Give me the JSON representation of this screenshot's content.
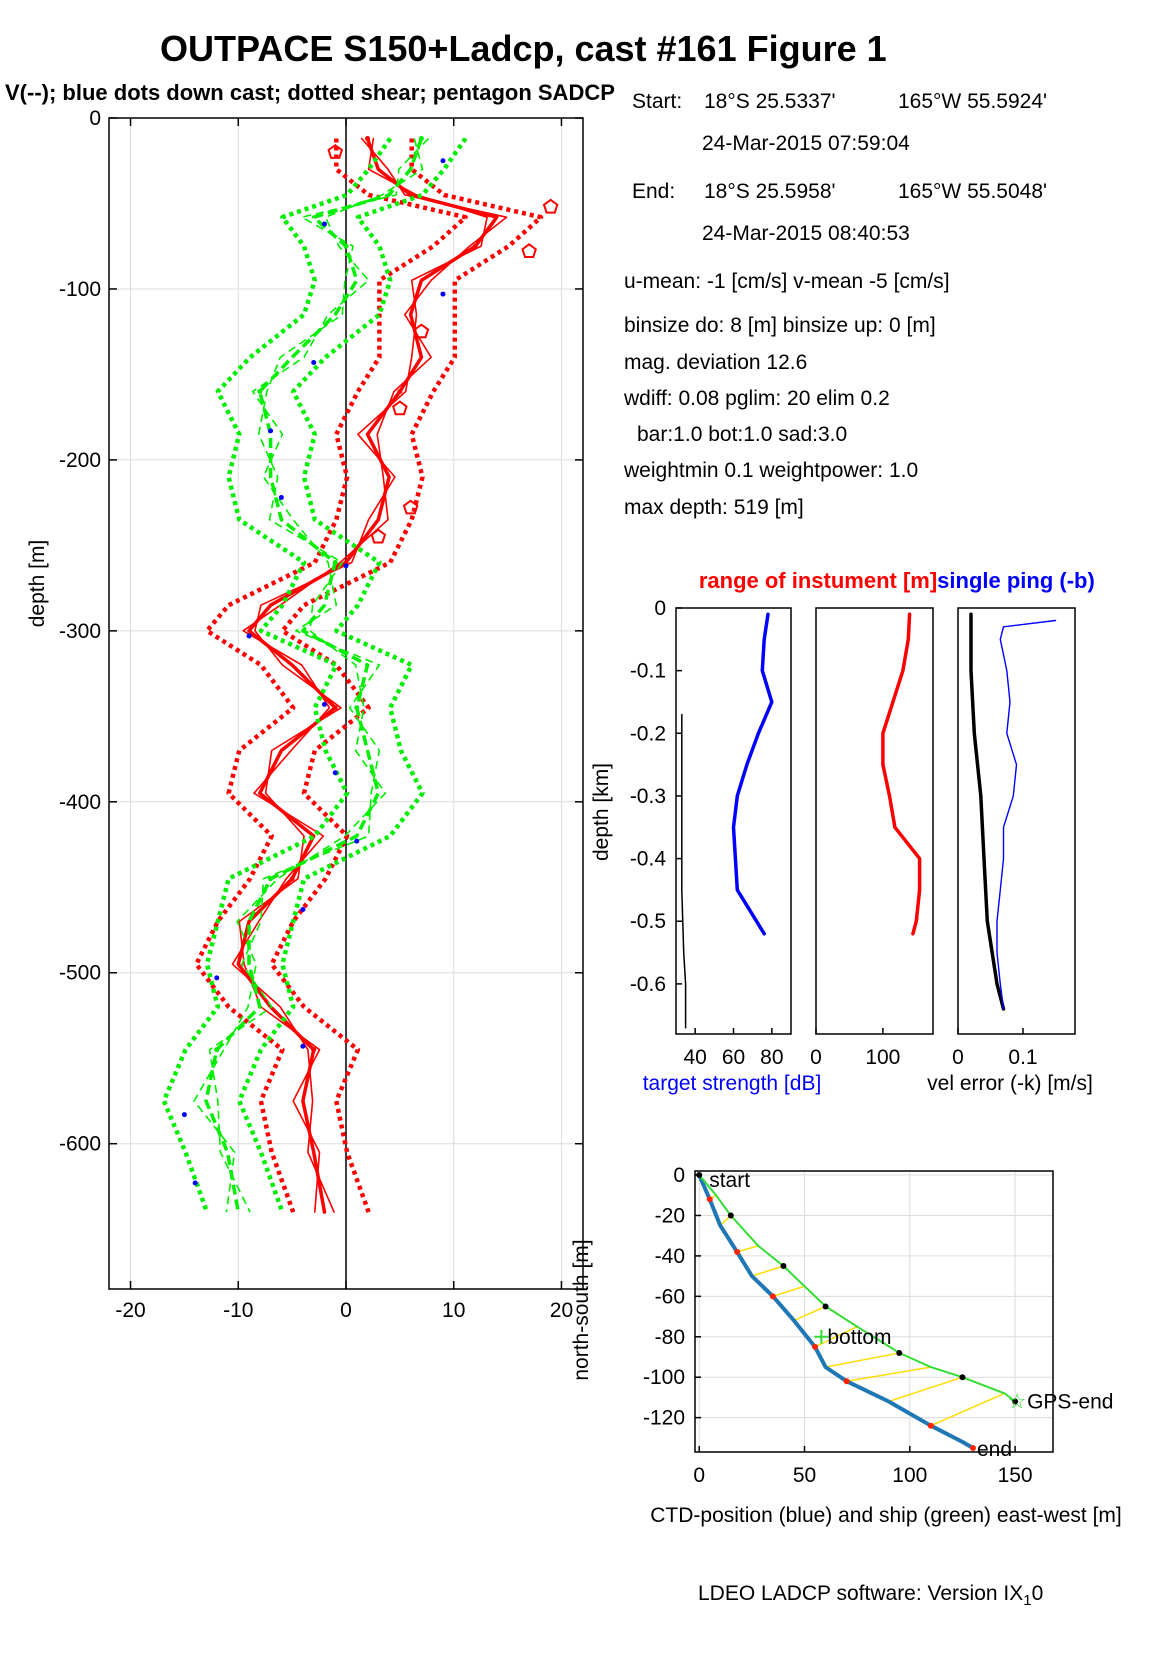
{
  "figure": {
    "title": "OUTPACE S150+Ladcp, cast #161  Figure 1",
    "subtitle": "V(--); blue dots down cast; dotted shear; pentagon SADCP",
    "footer": "LDEO LADCP software: Version IX",
    "footer_sub": "1",
    "footer_tail": "0"
  },
  "info": {
    "start_label": "Start:",
    "start_lat": "18°S 25.5337'",
    "start_lon": "165°W 55.5924'",
    "start_time": "24-Mar-2015 07:59:04",
    "end_label": "End:",
    "end_lat": "18°S 25.5958'",
    "end_lon": "165°W 55.5048'",
    "end_time": "24-Mar-2015 08:40:53",
    "means": "u-mean:  -1 [cm/s]    v-mean  -5 [cm/s]",
    "binsize": "binsize do: 8 [m]  binsize up:  0 [m]",
    "magdev": "mag. deviation 12.6",
    "wdiff": "wdiff: 0.08  pglim: 20  elim 0.2",
    "bar": "bar:1.0 bot:1.0 sad:3.0",
    "weight": "weightmin 0.1  weightpower: 1.0",
    "maxdepth": "max depth: 519 [m]"
  },
  "chart_data": [
    {
      "type": "line",
      "id": "velocity-profile",
      "title": "V(--); blue dots down cast; dotted shear; pentagon SADCP",
      "ylabel": "depth [m]",
      "xlabel": "",
      "xlim": [
        -22,
        22
      ],
      "ylim": [
        -685,
        0
      ],
      "xticks": [
        "-20",
        "-10",
        "0",
        "10",
        "20"
      ],
      "yticks": [
        "0",
        "-100",
        "-200",
        "-300",
        "-400",
        "-500",
        "-600"
      ],
      "grid": true,
      "series": [
        {
          "color": "#ff0000",
          "depth": [
            -12,
            -30,
            -45,
            -58,
            -75,
            -95,
            -115,
            -140,
            -160,
            -185,
            -210,
            -235,
            -260,
            -285,
            -300,
            -320,
            -345,
            -370,
            -395,
            -420,
            -445,
            -470,
            -495,
            -520,
            -545,
            -575,
            -605,
            -640
          ],
          "values": [
            2,
            3,
            6,
            14,
            12,
            7,
            6,
            7,
            5,
            2,
            4,
            3,
            0,
            -7,
            -9,
            -5,
            -1,
            -6,
            -8,
            -3,
            -5,
            -9,
            -10,
            -7,
            -3,
            -4,
            -3,
            -2
          ]
        },
        {
          "color": "#00ee00",
          "depth": [
            -12,
            -30,
            -45,
            -58,
            -75,
            -95,
            -115,
            -140,
            -160,
            -185,
            -210,
            -235,
            -260,
            -285,
            -300,
            -320,
            -345,
            -370,
            -395,
            -420,
            -445,
            -470,
            -495,
            -520,
            -545,
            -575,
            -605,
            -640
          ],
          "values": [
            7,
            6,
            4,
            -3,
            0,
            1,
            -1,
            -5,
            -8,
            -7,
            -7,
            -6,
            -1,
            -2,
            -4,
            2,
            1,
            2,
            3,
            1,
            -7,
            -9,
            -9,
            -8,
            -12,
            -13,
            -11,
            -10
          ]
        }
      ],
      "sadcp": {
        "color": "#ff0000",
        "depth": [
          -20,
          -52,
          -78,
          -125,
          -170,
          -228,
          -245
        ],
        "values": [
          -1,
          19,
          17,
          7,
          5,
          6,
          3
        ]
      },
      "downcast_dots": {
        "color": "#0000ff",
        "depth": [
          -25,
          -62,
          -103,
          -143,
          -183,
          -222,
          -262,
          -303,
          -343,
          -383,
          -423,
          -463,
          -503,
          -543,
          -583,
          -623
        ],
        "values": [
          9,
          -2,
          9,
          -3,
          -7,
          -6,
          0,
          -9,
          -2,
          -1,
          1,
          -4,
          -12,
          -4,
          -15,
          -14
        ]
      }
    },
    {
      "type": "line",
      "id": "target-strength",
      "xlabel": "target strength [dB]",
      "ylabel": "depth [km]",
      "xlim": [
        30,
        90
      ],
      "ylim": [
        -0.68,
        0
      ],
      "xticks": [
        "40",
        "60",
        "80"
      ],
      "yticks": [
        "0",
        "-0.1",
        "-0.2",
        "-0.3",
        "-0.4",
        "-0.5",
        "-0.6"
      ],
      "series": [
        {
          "color": "#0000ff",
          "depth": [
            -0.01,
            -0.05,
            -0.1,
            -0.15,
            -0.2,
            -0.25,
            -0.3,
            -0.35,
            -0.4,
            -0.45,
            -0.5,
            -0.52
          ],
          "values": [
            78,
            76,
            75,
            80,
            73,
            67,
            62,
            60,
            61,
            62,
            72,
            76
          ]
        },
        {
          "color": "#000000",
          "depth": [
            -0.17,
            -0.3,
            -0.45,
            -0.55,
            -0.6,
            -0.67
          ],
          "values": [
            33,
            33,
            33,
            34,
            35,
            35
          ]
        }
      ]
    },
    {
      "type": "line",
      "id": "instrument-range",
      "title": "range of instument [m]",
      "xlim": [
        0,
        175
      ],
      "ylim": [
        -0.68,
        0
      ],
      "xticks": [
        "0",
        "100"
      ],
      "series": [
        {
          "color": "#ff0000",
          "depth": [
            -0.01,
            -0.05,
            -0.1,
            -0.15,
            -0.2,
            -0.25,
            -0.3,
            -0.35,
            -0.4,
            -0.45,
            -0.5,
            -0.52
          ],
          "values": [
            140,
            138,
            130,
            115,
            100,
            100,
            110,
            118,
            155,
            155,
            150,
            145
          ]
        }
      ]
    },
    {
      "type": "line",
      "id": "single-ping",
      "title": "single ping (-b)",
      "xlabel": "vel error (-k) [m/s]",
      "xlim": [
        0,
        0.18
      ],
      "ylim": [
        -0.68,
        0
      ],
      "xticks": [
        "0",
        "0.1"
      ],
      "series": [
        {
          "color": "#000000",
          "depth": [
            -0.01,
            -0.05,
            -0.1,
            -0.2,
            -0.3,
            -0.4,
            -0.5,
            -0.6,
            -0.64
          ],
          "values": [
            0.02,
            0.02,
            0.02,
            0.025,
            0.035,
            0.04,
            0.045,
            0.06,
            0.07
          ]
        },
        {
          "color": "#0000ff",
          "depth": [
            -0.02,
            -0.03,
            -0.05,
            -0.1,
            -0.15,
            -0.2,
            -0.25,
            -0.3,
            -0.35,
            -0.4,
            -0.45,
            -0.5,
            -0.55,
            -0.6,
            -0.64
          ],
          "values": [
            0.15,
            0.07,
            0.065,
            0.075,
            0.08,
            0.075,
            0.09,
            0.085,
            0.07,
            0.07,
            0.065,
            0.06,
            0.06,
            0.065,
            0.07
          ]
        }
      ]
    },
    {
      "type": "line",
      "id": "ship-track",
      "xlabel": "CTD-position (blue) and ship (green) east-west [m]",
      "ylabel": "north-south [m]",
      "xlim": [
        -2,
        168
      ],
      "ylim": [
        -137,
        2
      ],
      "xticks": [
        "0",
        "50",
        "100",
        "150"
      ],
      "yticks": [
        "0",
        "-20",
        "-40",
        "-60",
        "-80",
        "-100",
        "-120"
      ],
      "grid": true,
      "labels": [
        "start",
        "bottom",
        "GPS-end",
        "end"
      ],
      "ctd": {
        "color": "#1f77b4",
        "x": [
          0,
          5,
          10,
          18,
          25,
          35,
          45,
          55,
          60,
          70,
          90,
          110,
          125,
          130
        ],
        "y": [
          0,
          -12,
          -25,
          -38,
          -50,
          -60,
          -72,
          -85,
          -95,
          -102,
          -112,
          -124,
          -132,
          -135
        ]
      },
      "ship": {
        "color": "#33dd33",
        "x": [
          0,
          8,
          15,
          28,
          40,
          50,
          60,
          75,
          95,
          110,
          125,
          145,
          150
        ],
        "y": [
          0,
          -10,
          -20,
          -35,
          -45,
          -55,
          -65,
          -75,
          -88,
          -95,
          -100,
          -108,
          -112
        ]
      }
    }
  ]
}
